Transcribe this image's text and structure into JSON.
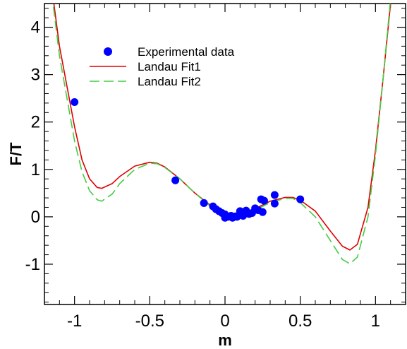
{
  "chart_data": {
    "type": "scatter",
    "xlabel": "m",
    "ylabel": "F/T",
    "xlim": [
      -1.2,
      1.2
    ],
    "ylim": [
      -1.85,
      4.5
    ],
    "x_ticks": [
      -1,
      -0.5,
      0,
      0.5,
      1
    ],
    "x_tick_labels": [
      "-1",
      "-0.5",
      "0",
      "0.5",
      "1"
    ],
    "y_ticks": [
      -1,
      0,
      1,
      2,
      3,
      4
    ],
    "y_tick_labels": [
      "-1",
      "0",
      "1",
      "2",
      "3",
      "4"
    ],
    "grid": false,
    "legend_position": "top-left",
    "legend": [
      {
        "label": "Experimental data",
        "style": "marker",
        "color": "#0000ff"
      },
      {
        "label": "Landau Fit1",
        "style": "solid",
        "color": "#e00000"
      },
      {
        "label": "Landau Fit2",
        "style": "dashed",
        "color": "#44cc44"
      }
    ],
    "series": [
      {
        "name": "Experimental data",
        "kind": "scatter",
        "color": "#0000ff",
        "points": [
          [
            -1.0,
            2.42
          ],
          [
            -0.33,
            0.77
          ],
          [
            -0.14,
            0.29
          ],
          [
            -0.08,
            0.22
          ],
          [
            -0.06,
            0.16
          ],
          [
            -0.04,
            0.12
          ],
          [
            -0.02,
            0.08
          ],
          [
            0.0,
            0.05
          ],
          [
            0.0,
            -0.02
          ],
          [
            0.02,
            0.0
          ],
          [
            0.04,
            0.02
          ],
          [
            0.05,
            -0.02
          ],
          [
            0.07,
            0.01
          ],
          [
            0.08,
            0.0
          ],
          [
            0.1,
            0.12
          ],
          [
            0.12,
            0.02
          ],
          [
            0.14,
            0.13
          ],
          [
            0.16,
            0.06
          ],
          [
            0.18,
            0.08
          ],
          [
            0.2,
            0.18
          ],
          [
            0.22,
            0.14
          ],
          [
            0.24,
            0.37
          ],
          [
            0.26,
            0.34
          ],
          [
            0.25,
            0.1
          ],
          [
            0.33,
            0.28
          ],
          [
            0.33,
            0.46
          ],
          [
            0.5,
            0.37
          ]
        ]
      },
      {
        "name": "Landau Fit1",
        "kind": "line",
        "color": "#e00000",
        "dash": "solid",
        "points": [
          [
            -1.22,
            6.5
          ],
          [
            -1.1,
            3.6
          ],
          [
            -1.0,
            1.9
          ],
          [
            -0.95,
            1.2
          ],
          [
            -0.9,
            0.8
          ],
          [
            -0.85,
            0.62
          ],
          [
            -0.82,
            0.6
          ],
          [
            -0.75,
            0.7
          ],
          [
            -0.7,
            0.85
          ],
          [
            -0.6,
            1.07
          ],
          [
            -0.5,
            1.15
          ],
          [
            -0.45,
            1.13
          ],
          [
            -0.4,
            1.05
          ],
          [
            -0.3,
            0.8
          ],
          [
            -0.2,
            0.5
          ],
          [
            -0.1,
            0.25
          ],
          [
            0.0,
            0.08
          ],
          [
            0.05,
            0.03
          ],
          [
            0.1,
            0.05
          ],
          [
            0.2,
            0.17
          ],
          [
            0.3,
            0.33
          ],
          [
            0.4,
            0.41
          ],
          [
            0.45,
            0.41
          ],
          [
            0.5,
            0.35
          ],
          [
            0.6,
            0.12
          ],
          [
            0.7,
            -0.3
          ],
          [
            0.78,
            -0.62
          ],
          [
            0.83,
            -0.7
          ],
          [
            0.88,
            -0.58
          ],
          [
            0.95,
            0.2
          ],
          [
            1.0,
            1.4
          ],
          [
            1.05,
            2.9
          ],
          [
            1.1,
            4.5
          ],
          [
            1.13,
            6.0
          ]
        ]
      },
      {
        "name": "Landau Fit2",
        "kind": "line",
        "color": "#44cc44",
        "dash": "dashed",
        "points": [
          [
            -1.22,
            6.5
          ],
          [
            -1.1,
            3.4
          ],
          [
            -1.0,
            1.6
          ],
          [
            -0.95,
            0.95
          ],
          [
            -0.9,
            0.55
          ],
          [
            -0.85,
            0.36
          ],
          [
            -0.82,
            0.33
          ],
          [
            -0.75,
            0.48
          ],
          [
            -0.7,
            0.7
          ],
          [
            -0.6,
            1.0
          ],
          [
            -0.5,
            1.13
          ],
          [
            -0.45,
            1.12
          ],
          [
            -0.4,
            1.04
          ],
          [
            -0.3,
            0.8
          ],
          [
            -0.2,
            0.5
          ],
          [
            -0.1,
            0.23
          ],
          [
            0.0,
            0.05
          ],
          [
            0.05,
            0.01
          ],
          [
            0.1,
            0.03
          ],
          [
            0.2,
            0.14
          ],
          [
            0.3,
            0.3
          ],
          [
            0.4,
            0.39
          ],
          [
            0.45,
            0.39
          ],
          [
            0.5,
            0.3
          ],
          [
            0.6,
            0.0
          ],
          [
            0.7,
            -0.5
          ],
          [
            0.78,
            -0.9
          ],
          [
            0.83,
            -0.99
          ],
          [
            0.88,
            -0.85
          ],
          [
            0.95,
            0.0
          ],
          [
            1.0,
            1.3
          ],
          [
            1.05,
            2.9
          ],
          [
            1.1,
            4.6
          ],
          [
            1.13,
            6.0
          ]
        ]
      }
    ]
  }
}
